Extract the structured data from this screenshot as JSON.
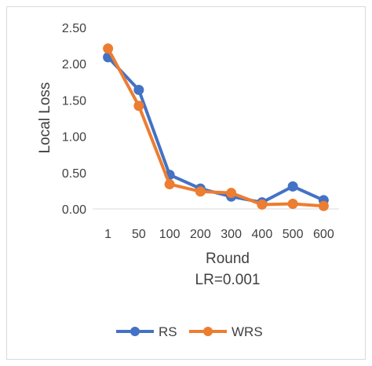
{
  "chart_data": {
    "type": "line",
    "categories": [
      "1",
      "50",
      "100",
      "200",
      "300",
      "400",
      "500",
      "600"
    ],
    "series": [
      {
        "name": "RS",
        "color": "#4472c4",
        "values": [
          2.09,
          1.64,
          0.47,
          0.28,
          0.17,
          0.09,
          0.31,
          0.12
        ]
      },
      {
        "name": "WRS",
        "color": "#ed7d31",
        "values": [
          2.21,
          1.42,
          0.34,
          0.24,
          0.22,
          0.06,
          0.07,
          0.04
        ]
      }
    ],
    "yticks": [
      "0.00",
      "0.50",
      "1.00",
      "1.50",
      "2.00",
      "2.50"
    ],
    "ylim": [
      0,
      2.5
    ],
    "xlabel": "Round",
    "subtitle": "LR=0.001",
    "ylabel": "Local Loss",
    "grid": false,
    "legend": "bottom"
  }
}
